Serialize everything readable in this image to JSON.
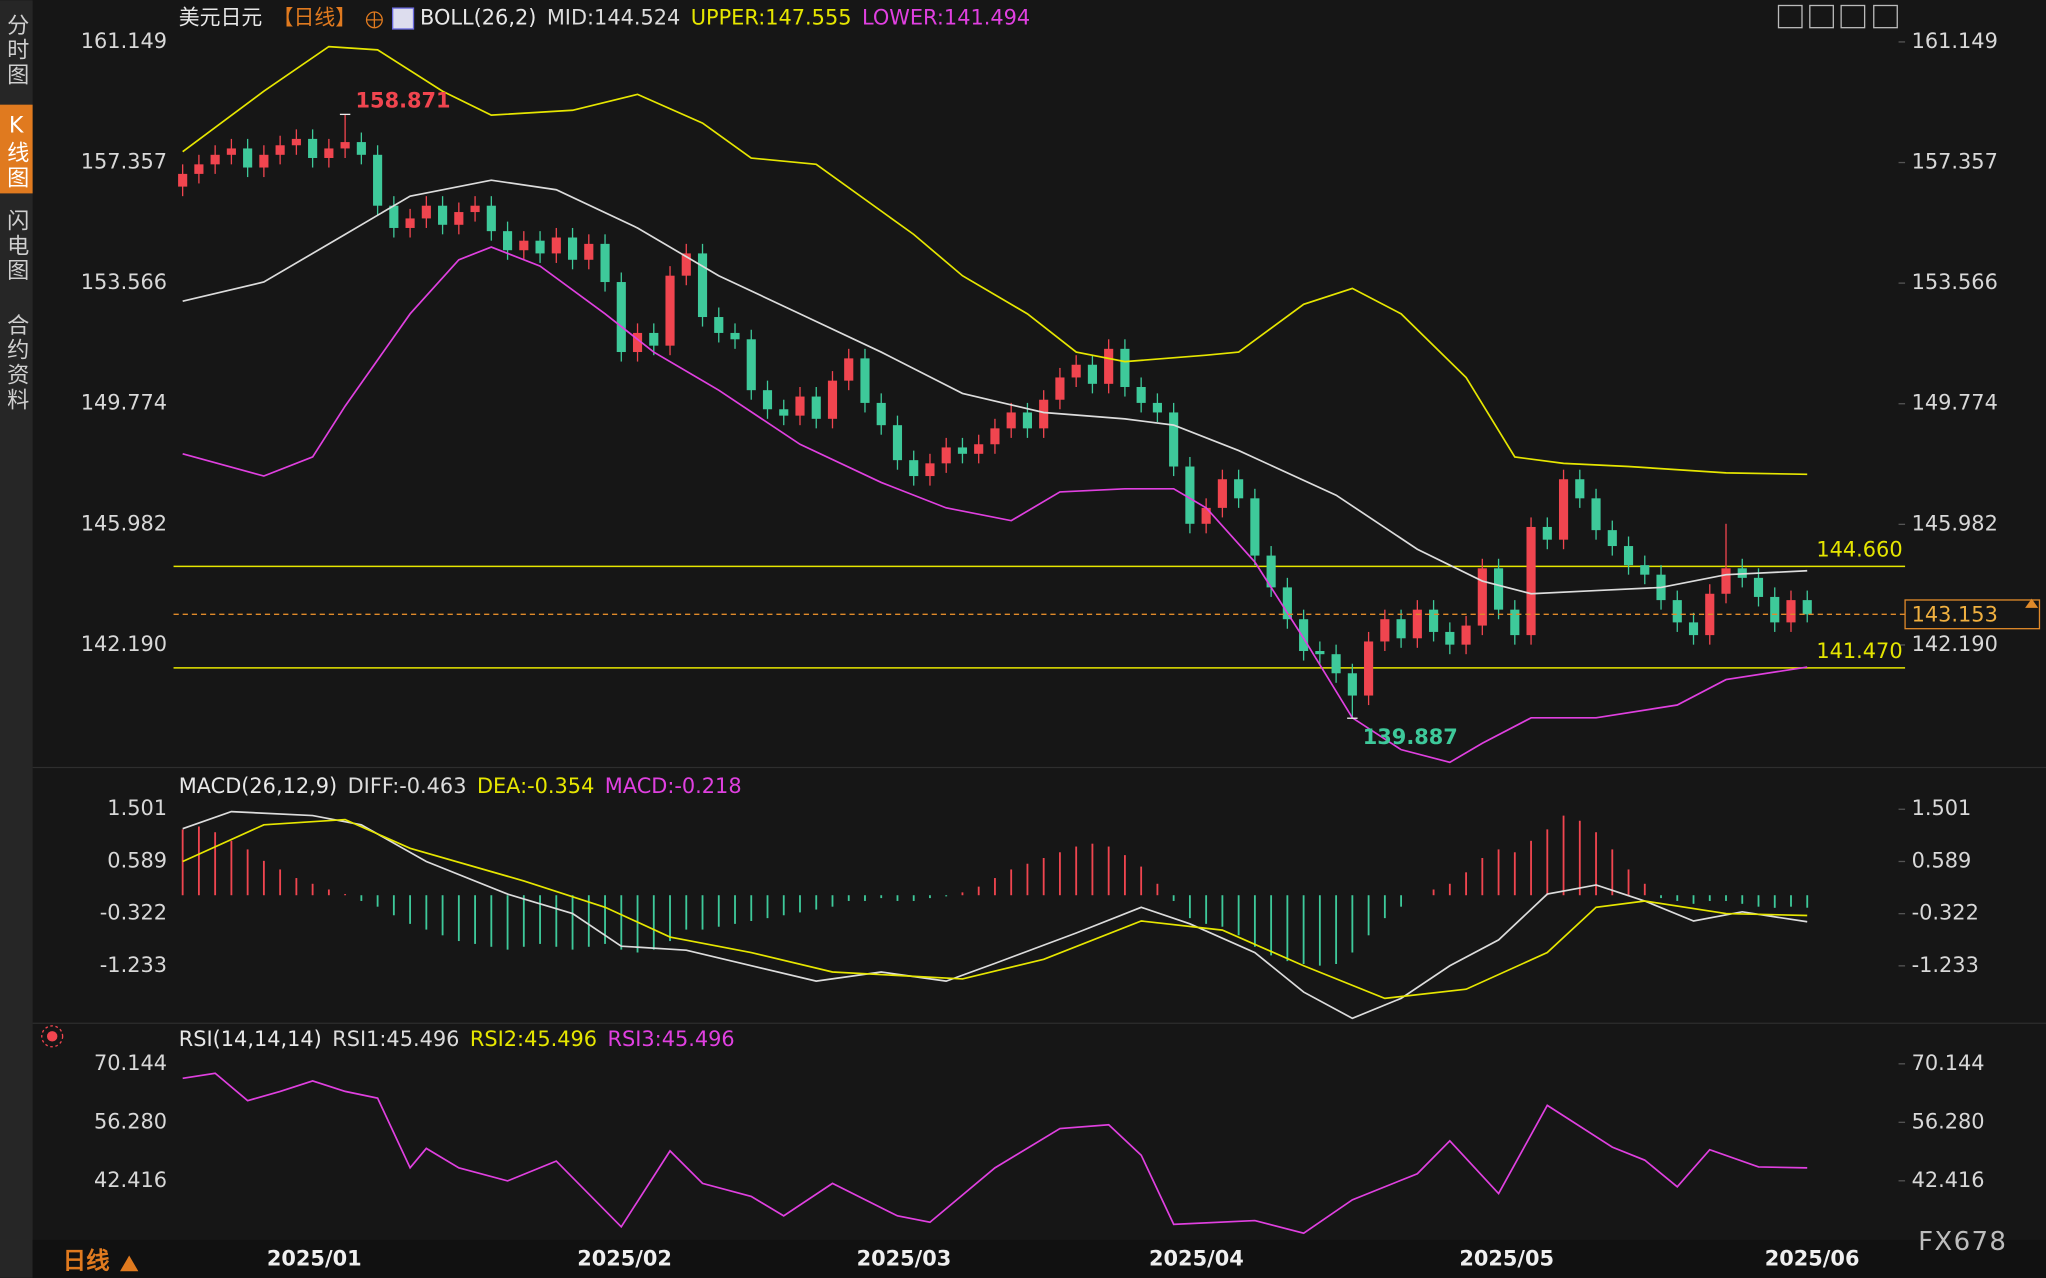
{
  "side_tabs": [
    "分时图",
    "K线图",
    "闪电图",
    "合约资料"
  ],
  "bottom_bar": {
    "period": "日线"
  },
  "watermark": "FX678",
  "chart_data": [
    {
      "type": "candlestick",
      "title": "美元日元",
      "period_label": "【日线】",
      "indicator": "BOLL(26,2)",
      "up_color": "#f0454f",
      "down_color": "#3ec99a",
      "annotation_colors": [
        "#f0454f",
        "#3ec99a"
      ],
      "xlim": [
        -0.4,
        100.4
      ],
      "ylim": [
        138.46,
        162.13
      ],
      "yticks": [
        161.149,
        157.357,
        153.566,
        149.774,
        145.982,
        {
          "value": 142.19,
          "label": "142.190"
        }
      ],
      "xticks": [
        {
          "value": 8.1,
          "label": "2025/01"
        },
        {
          "value": 27.2,
          "label": "2025/02"
        },
        {
          "value": 44.4,
          "label": "2025/03"
        },
        {
          "value": 62.4,
          "label": "2025/04"
        },
        {
          "value": 81.5,
          "label": "2025/05"
        },
        {
          "value": 100.3,
          "label": "2025/06"
        }
      ],
      "reference_lines": [
        {
          "value": 144.66,
          "label": "144.660"
        },
        {
          "value": 141.47,
          "label": "141.470"
        }
      ],
      "reference_color": "#e6e600",
      "last_price_color": "#e08a2a",
      "open": [
        156.6,
        157.0,
        157.3,
        157.6,
        157.8,
        157.2,
        157.6,
        157.9,
        158.1,
        157.5,
        157.8,
        158.0,
        157.6,
        156.0,
        155.3,
        155.6,
        156.0,
        155.4,
        155.8,
        156.0,
        155.2,
        154.6,
        154.9,
        154.5,
        155.0,
        154.3,
        154.8,
        153.6,
        151.4,
        152.0,
        151.6,
        153.8,
        154.5,
        152.5,
        152.0,
        151.8,
        150.2,
        149.6,
        149.4,
        150.0,
        149.3,
        150.5,
        151.2,
        149.8,
        149.1,
        148.0,
        147.5,
        147.9,
        148.4,
        148.2,
        148.5,
        149.0,
        149.5,
        149.0,
        149.9,
        150.6,
        151.0,
        150.4,
        151.5,
        150.3,
        149.8,
        149.5,
        147.8,
        146.0,
        146.5,
        147.4,
        146.8,
        145.0,
        144.0,
        143.0,
        142.0,
        141.9,
        141.3,
        140.6,
        142.3,
        143.0,
        142.4,
        143.3,
        142.6,
        142.2,
        142.8,
        144.6,
        143.3,
        142.5,
        145.9,
        145.5,
        147.4,
        146.8,
        145.8,
        145.3,
        144.7,
        144.4,
        143.6,
        142.9,
        142.5,
        143.8,
        144.6,
        144.3,
        143.7,
        142.9,
        143.6
      ],
      "high": [
        157.3,
        157.6,
        157.9,
        158.1,
        158.1,
        157.9,
        158.2,
        158.4,
        158.4,
        158.1,
        158.871,
        158.3,
        157.9,
        156.3,
        155.9,
        156.3,
        156.3,
        156.1,
        156.3,
        156.3,
        155.5,
        155.2,
        155.2,
        155.3,
        155.3,
        155.1,
        155.1,
        153.9,
        152.3,
        152.3,
        154.1,
        154.8,
        154.8,
        152.8,
        152.3,
        152.1,
        150.5,
        149.9,
        150.3,
        150.3,
        150.8,
        151.5,
        151.5,
        150.1,
        149.4,
        148.3,
        148.2,
        148.7,
        148.7,
        148.8,
        149.3,
        149.8,
        149.8,
        150.2,
        150.9,
        151.3,
        151.3,
        151.8,
        151.8,
        150.6,
        150.1,
        149.8,
        148.1,
        146.8,
        147.7,
        147.7,
        147.1,
        145.3,
        144.3,
        143.3,
        142.3,
        142.2,
        141.6,
        142.6,
        143.3,
        143.3,
        143.6,
        143.6,
        142.9,
        143.1,
        144.9,
        144.9,
        143.6,
        146.2,
        146.2,
        147.7,
        147.7,
        147.1,
        146.1,
        145.6,
        145.0,
        144.7,
        143.9,
        143.2,
        144.1,
        146.0,
        144.9,
        144.6,
        144.0,
        143.9,
        143.9
      ],
      "low": [
        156.3,
        156.7,
        157.0,
        157.3,
        156.9,
        156.9,
        157.3,
        157.6,
        157.2,
        157.2,
        157.5,
        157.3,
        155.7,
        155.0,
        155.0,
        155.3,
        155.1,
        155.1,
        155.5,
        154.9,
        154.3,
        154.3,
        154.2,
        154.2,
        154.0,
        154.0,
        153.3,
        151.1,
        151.1,
        151.3,
        151.3,
        153.5,
        152.2,
        151.7,
        151.5,
        149.9,
        149.3,
        149.1,
        149.1,
        149.0,
        149.0,
        150.2,
        149.5,
        148.8,
        147.7,
        147.2,
        147.2,
        147.6,
        147.9,
        147.9,
        148.2,
        148.7,
        148.7,
        148.7,
        149.6,
        150.3,
        150.1,
        150.1,
        150.0,
        149.5,
        149.2,
        147.5,
        145.7,
        145.7,
        146.2,
        146.5,
        144.7,
        143.7,
        142.7,
        141.7,
        141.6,
        141.0,
        139.887,
        140.3,
        142.0,
        142.1,
        142.1,
        142.3,
        141.9,
        141.9,
        142.5,
        143.0,
        142.2,
        142.2,
        145.2,
        145.2,
        146.5,
        145.5,
        145.0,
        144.4,
        144.1,
        143.3,
        142.6,
        142.2,
        142.2,
        143.5,
        144.0,
        143.4,
        142.6,
        142.6,
        142.9
      ],
      "close": [
        157.0,
        157.3,
        157.6,
        157.8,
        157.2,
        157.6,
        157.9,
        158.1,
        157.5,
        157.8,
        158.0,
        157.6,
        156.0,
        155.3,
        155.6,
        156.0,
        155.4,
        155.8,
        156.0,
        155.2,
        154.6,
        154.9,
        154.5,
        155.0,
        154.3,
        154.8,
        153.6,
        151.4,
        152.0,
        151.6,
        153.8,
        154.5,
        152.5,
        152.0,
        151.8,
        150.2,
        149.6,
        149.4,
        150.0,
        149.3,
        150.5,
        151.2,
        149.8,
        149.1,
        148.0,
        147.5,
        147.9,
        148.4,
        148.2,
        148.5,
        149.0,
        149.5,
        149.0,
        149.9,
        150.6,
        151.0,
        150.4,
        151.5,
        150.3,
        149.8,
        149.5,
        147.8,
        146.0,
        146.5,
        147.4,
        146.8,
        145.0,
        144.0,
        143.0,
        142.0,
        141.9,
        141.3,
        140.6,
        142.3,
        143.0,
        142.4,
        143.3,
        142.6,
        142.2,
        142.8,
        144.6,
        143.3,
        142.5,
        145.9,
        145.5,
        147.4,
        146.8,
        145.8,
        145.3,
        144.7,
        144.4,
        143.6,
        142.9,
        142.5,
        143.8,
        144.6,
        144.3,
        143.7,
        142.9,
        143.6,
        143.153
      ],
      "series": [
        {
          "name": "MID:144.524",
          "color": "#dcdcdc",
          "x": [
            0,
            5,
            10,
            14,
            19,
            23,
            28,
            33,
            38,
            43,
            48,
            53,
            58,
            61,
            65,
            71,
            76,
            80,
            83,
            87,
            91,
            95,
            100
          ],
          "values": [
            153.0,
            153.6,
            155.1,
            156.3,
            156.8,
            156.5,
            155.3,
            153.8,
            152.6,
            151.4,
            150.1,
            149.5,
            149.3,
            149.1,
            148.3,
            146.9,
            145.2,
            144.2,
            143.8,
            143.9,
            144.0,
            144.4,
            144.524
          ]
        },
        {
          "name": "UPPER:147.555",
          "color": "#e6e600",
          "x": [
            0,
            5,
            9,
            12,
            16,
            19,
            24,
            28,
            32,
            35,
            39,
            45,
            48,
            52,
            55,
            58,
            63,
            65,
            69,
            72,
            75,
            79,
            82,
            85,
            89,
            95,
            100
          ],
          "values": [
            157.7,
            159.6,
            161.0,
            160.9,
            159.6,
            158.85,
            159.0,
            159.5,
            158.6,
            157.5,
            157.3,
            155.1,
            153.8,
            152.6,
            151.4,
            151.1,
            151.3,
            151.4,
            152.9,
            153.4,
            152.6,
            150.6,
            148.1,
            147.9,
            147.8,
            147.6,
            147.555
          ]
        },
        {
          "name": "LOWER:141.494",
          "color": "#e040e0",
          "x": [
            0,
            5,
            8,
            10,
            14,
            17,
            19,
            22,
            26,
            29,
            33,
            38,
            43,
            47,
            51,
            54,
            58,
            61,
            63,
            66,
            69,
            72,
            75,
            78,
            80,
            83,
            87,
            92,
            95,
            100
          ],
          "values": [
            148.2,
            147.5,
            148.1,
            149.7,
            152.6,
            154.3,
            154.7,
            154.1,
            152.6,
            151.4,
            150.2,
            148.5,
            147.3,
            146.5,
            146.1,
            147.0,
            147.1,
            147.1,
            146.5,
            144.8,
            142.4,
            139.9,
            138.9,
            138.5,
            139.1,
            139.9,
            139.9,
            140.3,
            141.1,
            141.494
          ]
        }
      ]
    },
    {
      "type": "macd",
      "title": "MACD(26,12,9)",
      "xlim": [
        -0.4,
        100.4
      ],
      "ylim": [
        -2.19,
        2.07
      ],
      "yticks": [
        1.501,
        0.589,
        -0.322,
        -1.233
      ],
      "series": [
        {
          "name": "DIFF:-0.463",
          "color": "#dcdcdc",
          "x": [
            0,
            3,
            8,
            11,
            15,
            20,
            24,
            27,
            31,
            35,
            39,
            43,
            47,
            50,
            55,
            59,
            62,
            66,
            69,
            72,
            75,
            78,
            81,
            84,
            87,
            90,
            93,
            96,
            100
          ],
          "values": [
            1.16,
            1.46,
            1.39,
            1.23,
            0.59,
            0.02,
            -0.32,
            -0.89,
            -0.96,
            -1.23,
            -1.5,
            -1.34,
            -1.5,
            -1.19,
            -0.66,
            -0.21,
            -0.5,
            -1.0,
            -1.69,
            -2.15,
            -1.8,
            -1.23,
            -0.78,
            0.02,
            0.18,
            -0.1,
            -0.45,
            -0.29,
            -0.463
          ]
        },
        {
          "name": "DEA:-0.354",
          "color": "#e6e600",
          "x": [
            0,
            5,
            10,
            14,
            21,
            26,
            30,
            35,
            40,
            48,
            53,
            59,
            64,
            69,
            74,
            79,
            84,
            87,
            90,
            95,
            100
          ],
          "values": [
            0.59,
            1.23,
            1.32,
            0.82,
            0.25,
            -0.21,
            -0.73,
            -1.0,
            -1.34,
            -1.46,
            -1.12,
            -0.45,
            -0.61,
            -1.23,
            -1.8,
            -1.64,
            -1.0,
            -0.21,
            -0.1,
            -0.32,
            -0.354
          ]
        }
      ],
      "histogram": {
        "name": "MACD:-0.218",
        "color": "#e040e0",
        "up_color": "#f0454f",
        "down_color": "#3ec99a",
        "values": [
          1.15,
          1.2,
          1.1,
          0.95,
          0.8,
          0.6,
          0.45,
          0.3,
          0.2,
          0.1,
          0.02,
          -0.1,
          -0.2,
          -0.35,
          -0.5,
          -0.6,
          -0.7,
          -0.8,
          -0.85,
          -0.9,
          -0.95,
          -0.9,
          -0.85,
          -0.9,
          -0.95,
          -0.9,
          -0.85,
          -0.95,
          -1.0,
          -0.95,
          -0.8,
          -0.6,
          -0.6,
          -0.55,
          -0.5,
          -0.45,
          -0.4,
          -0.35,
          -0.3,
          -0.25,
          -0.2,
          -0.1,
          -0.1,
          -0.05,
          -0.1,
          -0.1,
          -0.05,
          -0.02,
          0.05,
          0.15,
          0.3,
          0.45,
          0.55,
          0.65,
          0.75,
          0.85,
          0.9,
          0.85,
          0.7,
          0.5,
          0.2,
          -0.1,
          -0.4,
          -0.5,
          -0.55,
          -0.7,
          -0.9,
          -1.05,
          -1.15,
          -1.2,
          -1.23,
          -1.2,
          -1.0,
          -0.7,
          -0.4,
          -0.2,
          0.0,
          0.1,
          0.2,
          0.4,
          0.65,
          0.8,
          0.75,
          0.95,
          1.15,
          1.39,
          1.3,
          1.1,
          0.8,
          0.45,
          0.2,
          -0.05,
          -0.1,
          -0.15,
          -0.1,
          -0.1,
          -0.15,
          -0.2,
          -0.22,
          -0.2,
          -0.218
        ]
      }
    },
    {
      "type": "line",
      "title": "RSI(14,14,14)",
      "xlim": [
        -0.4,
        100.4
      ],
      "ylim": [
        29.96,
        73.26
      ],
      "yticks": [
        70.144,
        {
          "value": 56.28,
          "label": "56.280"
        },
        42.416
      ],
      "legend": [
        {
          "text": "RSI1:45.496",
          "color": "#dcdcdc"
        },
        {
          "text": "RSI2:45.496",
          "color": "#e6e600"
        },
        {
          "text": "RSI3:45.496",
          "color": "#e040e0"
        }
      ],
      "series": [
        {
          "color": "#e040e0",
          "x": [
            0,
            2,
            4,
            6,
            8,
            10,
            12,
            14,
            15,
            17,
            20,
            23,
            27,
            30,
            32,
            35,
            37,
            40,
            44,
            46,
            50,
            54,
            57,
            59,
            61,
            66,
            69,
            72,
            76,
            78,
            81,
            84,
            88,
            90,
            92,
            94,
            97,
            100
          ],
          "values": [
            66.7,
            67.9,
            61.4,
            63.6,
            66.1,
            63.6,
            62.0,
            45.5,
            50.1,
            45.5,
            42.4,
            47.1,
            31.5,
            49.5,
            41.8,
            38.7,
            34.1,
            41.8,
            34.1,
            32.6,
            45.5,
            54.8,
            55.7,
            48.5,
            32.1,
            33.0,
            30.0,
            37.9,
            44.1,
            51.9,
            39.4,
            60.3,
            50.4,
            47.3,
            41.0,
            49.8,
            45.7,
            45.496
          ]
        }
      ]
    }
  ]
}
